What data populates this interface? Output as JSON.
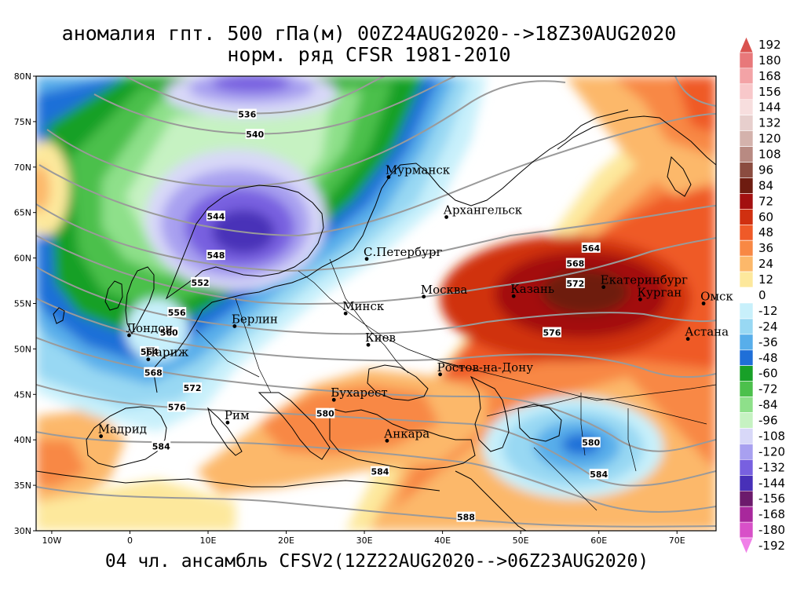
{
  "title_line1": "аномалия гпт. 500 гПа(м) 00Z24AUG2020-->18Z30AUG2020",
  "title_line2": "норм. ряд CFSR 1981-2010",
  "footer": "04 чл. ансамбль CFSV2(12Z22AUG2020-->06Z23AUG2020)",
  "map_extent": {
    "lon": [
      -12,
      75
    ],
    "lat": [
      30,
      80
    ]
  },
  "lat_labels": [
    "80N",
    "75N",
    "70N",
    "65N",
    "60N",
    "55N",
    "50N",
    "45N",
    "40N",
    "35N",
    "30N"
  ],
  "lon_labels": [
    "10W",
    "0",
    "10E",
    "20E",
    "30E",
    "40E",
    "50E",
    "60E",
    "70E"
  ],
  "colorbar": {
    "values": [
      "192",
      "180",
      "168",
      "156",
      "144",
      "132",
      "120",
      "108",
      "96",
      "84",
      "72",
      "60",
      "48",
      "36",
      "24",
      "12",
      "0",
      "-12",
      "-24",
      "-36",
      "-48",
      "-60",
      "-72",
      "-84",
      "-96",
      "-108",
      "-120",
      "-132",
      "-144",
      "-156",
      "-168",
      "-180",
      "-192"
    ],
    "colors": [
      "#d9534f",
      "#e8787a",
      "#f3a3a6",
      "#f8c8ca",
      "#f7dede",
      "#e7cfcd",
      "#d4b2ac",
      "#b88a82",
      "#8b4c40",
      "#6e1c10",
      "#a31010",
      "#d03010",
      "#ef5a28",
      "#f88844",
      "#fcb86a",
      "#fde89c",
      "#ffffff",
      "#c8f0fb",
      "#98d8f3",
      "#58aeea",
      "#1f6fd8",
      "#18a028",
      "#4cc04c",
      "#8ee08a",
      "#c6f2c2",
      "#d8d8f8",
      "#a8a0f0",
      "#7860e0",
      "#4830b8",
      "#6c1a6c",
      "#a8289c",
      "#d850c8",
      "#f080e8"
    ]
  },
  "cities": [
    {
      "name": "Мурманск",
      "lon": 33.1,
      "lat": 68.9
    },
    {
      "name": "Архангельск",
      "lon": 40.5,
      "lat": 64.5
    },
    {
      "name": "С.Петербург",
      "lon": 30.3,
      "lat": 59.9
    },
    {
      "name": "Москва",
      "lon": 37.6,
      "lat": 55.75
    },
    {
      "name": "Минск",
      "lon": 27.6,
      "lat": 53.9
    },
    {
      "name": "Берлин",
      "lon": 13.4,
      "lat": 52.5
    },
    {
      "name": "Лондон",
      "lon": -0.1,
      "lat": 51.5
    },
    {
      "name": "Париж",
      "lon": 2.35,
      "lat": 48.85
    },
    {
      "name": "Киев",
      "lon": 30.5,
      "lat": 50.45
    },
    {
      "name": "Казань",
      "lon": 49.1,
      "lat": 55.8
    },
    {
      "name": "Екатеринбург",
      "lon": 60.6,
      "lat": 56.8
    },
    {
      "name": "Курган",
      "lon": 65.3,
      "lat": 55.45
    },
    {
      "name": "Омск",
      "lon": 73.4,
      "lat": 55.0
    },
    {
      "name": "Астана",
      "lon": 71.4,
      "lat": 51.1
    },
    {
      "name": "Ростов-на-Дону",
      "lon": 39.7,
      "lat": 47.2
    },
    {
      "name": "Бухарест",
      "lon": 26.1,
      "lat": 44.4
    },
    {
      "name": "Рим",
      "lon": 12.5,
      "lat": 41.9
    },
    {
      "name": "Мадрид",
      "lon": -3.7,
      "lat": 40.4
    },
    {
      "name": "Анкара",
      "lon": 32.9,
      "lat": 39.9
    }
  ],
  "contour_labels": [
    {
      "value": "536",
      "lon": 15,
      "lat": 75.8
    },
    {
      "value": "540",
      "lon": 16,
      "lat": 73.6
    },
    {
      "value": "544",
      "lon": 11,
      "lat": 64.6
    },
    {
      "value": "548",
      "lon": 11,
      "lat": 60.3
    },
    {
      "value": "552",
      "lon": 9,
      "lat": 57.3
    },
    {
      "value": "556",
      "lon": 6,
      "lat": 54.0
    },
    {
      "value": "560",
      "lon": 5,
      "lat": 51.8
    },
    {
      "value": "564",
      "lon": 2.5,
      "lat": 49.7
    },
    {
      "value": "568",
      "lon": 3,
      "lat": 47.4
    },
    {
      "value": "572",
      "lon": 8,
      "lat": 45.7
    },
    {
      "value": "576",
      "lon": 6,
      "lat": 43.6
    },
    {
      "value": "584",
      "lon": 4,
      "lat": 39.3
    },
    {
      "value": "580",
      "lon": 25,
      "lat": 42.9
    },
    {
      "value": "584",
      "lon": 32,
      "lat": 36.5
    },
    {
      "value": "588",
      "lon": 43,
      "lat": 31.5
    },
    {
      "value": "564",
      "lon": 59,
      "lat": 61.1
    },
    {
      "value": "568",
      "lon": 57,
      "lat": 59.4
    },
    {
      "value": "572",
      "lon": 57,
      "lat": 57.2
    },
    {
      "value": "576",
      "lon": 54,
      "lat": 51.8
    },
    {
      "value": "580",
      "lon": 59,
      "lat": 39.7
    },
    {
      "value": "584",
      "lon": 60,
      "lat": 36.2
    }
  ]
}
